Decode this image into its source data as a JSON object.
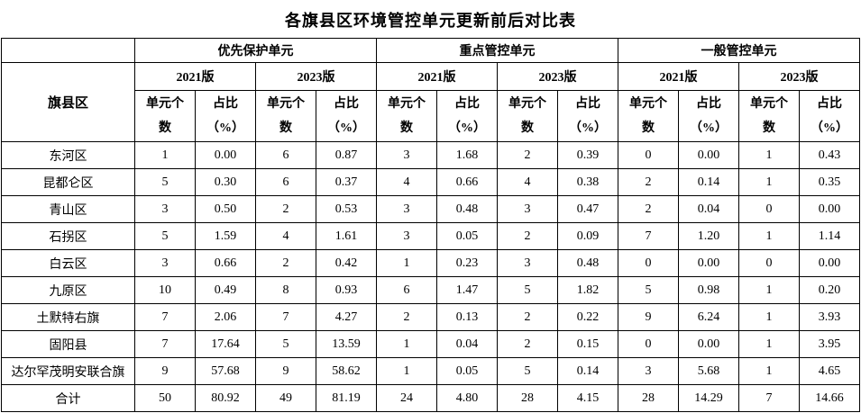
{
  "title": "各旗县区环境管控单元更新前后对比表",
  "table": {
    "row_header": "旗县区",
    "groups": [
      {
        "label": "优先保护单元",
        "versions": [
          "2021版",
          "2023版"
        ]
      },
      {
        "label": "重点管控单元",
        "versions": [
          "2021版",
          "2023版"
        ]
      },
      {
        "label": "一般管控单元",
        "versions": [
          "2021版",
          "2023版"
        ]
      }
    ],
    "metric_count": {
      "l1": "单元个",
      "l2": "数"
    },
    "metric_ratio": {
      "l1": "占比",
      "l2": "（%）"
    },
    "rows": [
      {
        "name": "东河区",
        "values": [
          "1",
          "0.00",
          "6",
          "0.87",
          "3",
          "1.68",
          "2",
          "0.39",
          "0",
          "0.00",
          "1",
          "0.43"
        ]
      },
      {
        "name": "昆都仑区",
        "values": [
          "5",
          "0.30",
          "6",
          "0.37",
          "4",
          "0.66",
          "4",
          "0.38",
          "2",
          "0.14",
          "1",
          "0.35"
        ]
      },
      {
        "name": "青山区",
        "values": [
          "3",
          "0.50",
          "2",
          "0.53",
          "3",
          "0.48",
          "3",
          "0.47",
          "2",
          "0.04",
          "0",
          "0.00"
        ]
      },
      {
        "name": "石拐区",
        "values": [
          "5",
          "1.59",
          "4",
          "1.61",
          "3",
          "0.05",
          "2",
          "0.09",
          "7",
          "1.20",
          "1",
          "1.14"
        ]
      },
      {
        "name": "白云区",
        "values": [
          "3",
          "0.66",
          "2",
          "0.42",
          "1",
          "0.23",
          "3",
          "0.48",
          "0",
          "0.00",
          "0",
          "0.00"
        ]
      },
      {
        "name": "九原区",
        "values": [
          "10",
          "0.49",
          "8",
          "0.93",
          "6",
          "1.47",
          "5",
          "1.82",
          "5",
          "0.98",
          "1",
          "0.20"
        ]
      },
      {
        "name": "土默特右旗",
        "values": [
          "7",
          "2.06",
          "7",
          "4.27",
          "2",
          "0.13",
          "2",
          "0.22",
          "9",
          "6.24",
          "1",
          "3.93"
        ]
      },
      {
        "name": "固阳县",
        "values": [
          "7",
          "17.64",
          "5",
          "13.59",
          "1",
          "0.04",
          "2",
          "0.15",
          "0",
          "0.00",
          "1",
          "3.95"
        ]
      },
      {
        "name": "达尔罕茂明安联合旗",
        "values": [
          "9",
          "57.68",
          "9",
          "58.62",
          "1",
          "0.05",
          "5",
          "0.14",
          "3",
          "5.68",
          "1",
          "4.65"
        ]
      },
      {
        "name": "合计",
        "values": [
          "50",
          "80.92",
          "49",
          "81.19",
          "24",
          "4.80",
          "28",
          "4.15",
          "28",
          "14.29",
          "7",
          "14.66"
        ]
      }
    ]
  }
}
